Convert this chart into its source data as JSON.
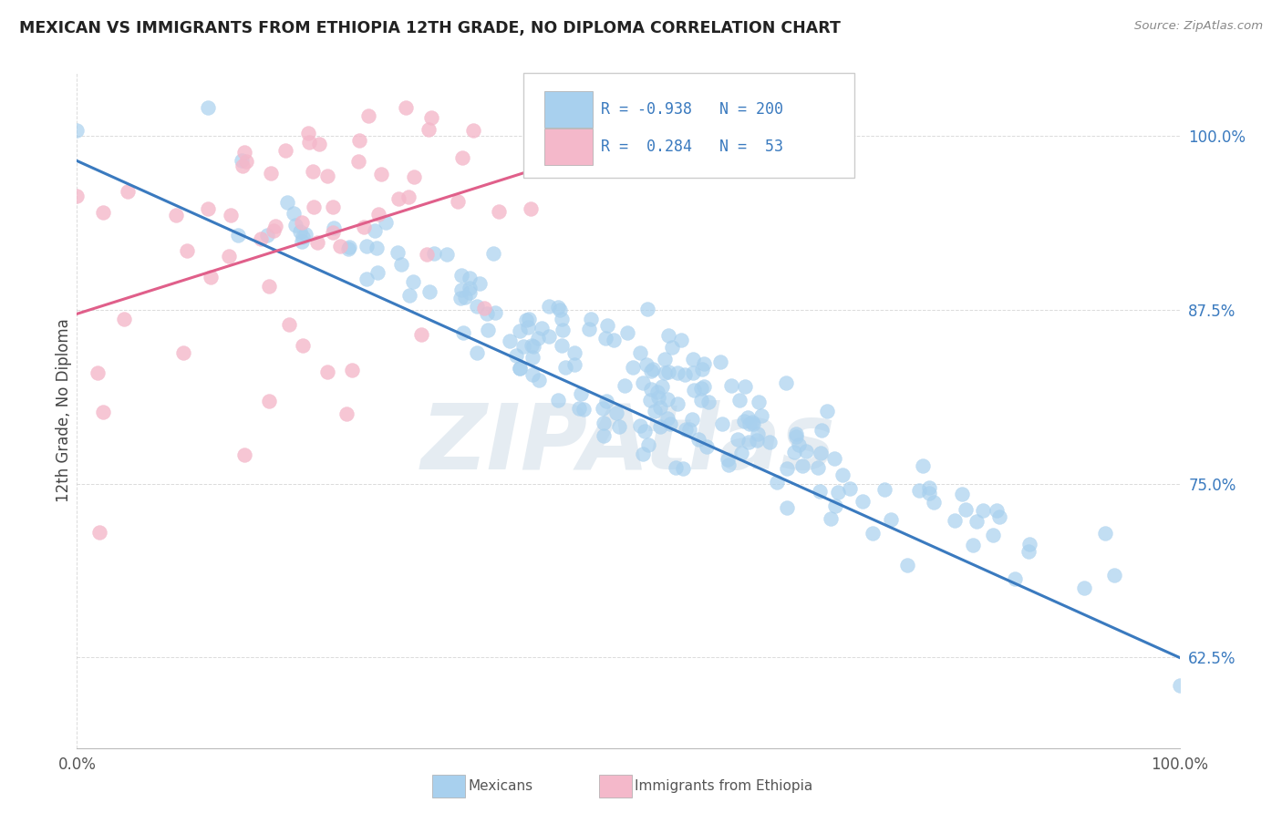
{
  "title": "MEXICAN VS IMMIGRANTS FROM ETHIOPIA 12TH GRADE, NO DIPLOMA CORRELATION CHART",
  "source": "Source: ZipAtlas.com",
  "ylabel": "12th Grade, No Diploma",
  "watermark": "ZIPAtlas",
  "blue_R": -0.938,
  "blue_N": 200,
  "pink_R": 0.284,
  "pink_N": 53,
  "blue_color": "#a8d0ee",
  "pink_color": "#f4b8ca",
  "blue_line_color": "#3a7abf",
  "pink_line_color": "#e05f8a",
  "legend_label_blue": "Mexicans",
  "legend_label_pink": "Immigrants from Ethiopia",
  "xmin": 0.0,
  "xmax": 1.0,
  "ymin": 0.56,
  "ymax": 1.045,
  "yticks": [
    0.625,
    0.75,
    0.875,
    1.0
  ],
  "ytick_labels": [
    "62.5%",
    "75.0%",
    "87.5%",
    "100.0%"
  ],
  "xtick_labels": [
    "0.0%",
    "100.0%"
  ],
  "background_color": "#ffffff",
  "grid_color": "#cccccc",
  "blue_line_x0": 0.0,
  "blue_line_x1": 1.0,
  "blue_line_y0": 0.982,
  "blue_line_y1": 0.625,
  "pink_line_x0": 0.0,
  "pink_line_x1": 0.52,
  "pink_line_y0": 0.872,
  "pink_line_y1": 1.002
}
